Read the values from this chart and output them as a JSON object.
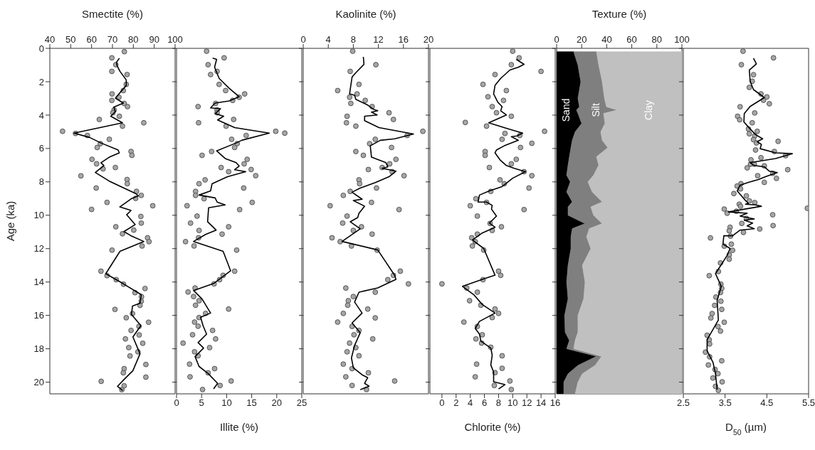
{
  "chart_data": [
    {
      "type": "scatter",
      "xlabel": "Smectite (%)",
      "ylabel": "Age (ka)",
      "xlim": [
        40,
        100
      ],
      "xticks": [
        40,
        50,
        60,
        70,
        80,
        90,
        100
      ],
      "ylim": [
        20.7,
        0
      ],
      "yticks": [
        0,
        2,
        4,
        6,
        8,
        10,
        12,
        14,
        16,
        18,
        20
      ],
      "series": [
        {
          "type": "scatter",
          "marker": "circle",
          "color": "#a6a6a6",
          "x": [
            75.7,
            69.7,
            71.6,
            69.7,
            77,
            76.6,
            75.2,
            69.8,
            73.1,
            69.7,
            75.6,
            77.2,
            70.8,
            70.2,
            73.3,
            63.7,
            85,
            74.8,
            46.1,
            52.3,
            58,
            68.5,
            64.2,
            62.7,
            78.9,
            79.3,
            60.2,
            62.4,
            71.4,
            65.5,
            54.9,
            77,
            77.1,
            62.2,
            81.5,
            83.8,
            81.1,
            67.4,
            89.3,
            60,
            83.6,
            83.8,
            71.6,
            80.2,
            74.8,
            86.8,
            87.5,
            84.2,
            69.8,
            64.5,
            67.4,
            71.8,
            75.3,
            85.6,
            80.8,
            83.9,
            83.8,
            83.2,
            71.2,
            79.6,
            76.6,
            87.3,
            82.7,
            78.9,
            82.8,
            76.2,
            84.5,
            77.8,
            82.2,
            78.4,
            86,
            75.6,
            75.2,
            86,
            64.6,
            75.6,
            74.5
          ],
          "values": [
            0.2,
            0.57,
            0.98,
            1.38,
            1.57,
            2.16,
            2.53,
            2.73,
            2.93,
            3.12,
            3.3,
            3.49,
            3.69,
            3.86,
            4.07,
            4.26,
            4.46,
            4.66,
            4.97,
            5.1,
            5.22,
            5.45,
            5.71,
            5.94,
            6.18,
            6.41,
            6.65,
            6.92,
            7.14,
            7.22,
            7.64,
            7.86,
            8.11,
            8.37,
            8.57,
            8.81,
            8.99,
            9.23,
            9.43,
            9.65,
            10.07,
            10.47,
            10.69,
            10.89,
            11.11,
            11.35,
            11.58,
            11.84,
            12.09,
            13.35,
            13.62,
            13.86,
            14.13,
            14.39,
            14.64,
            14.88,
            15.15,
            15.4,
            15.64,
            15.89,
            16.14,
            16.41,
            16.66,
            16.9,
            17.17,
            17.41,
            17.67,
            17.93,
            18.18,
            18.43,
            18.94,
            19.19,
            19.44,
            19.7,
            19.95,
            20.22,
            20.45
          ]
        },
        {
          "type": "line",
          "marker": "none",
          "color": "#000000",
          "x": [
            73.3,
            71.9,
            72.2,
            73.6,
            76.6,
            76.6,
            71.4,
            75.2,
            70.6,
            71.4,
            69.2,
            74.8,
            51.6,
            59.1,
            64.5,
            72.7,
            73.3,
            68.5,
            64.5,
            65.9,
            61.8,
            68.4,
            81.1,
            82.4,
            79,
            73.5,
            78.9,
            76.8,
            80.9,
            75.5,
            78.9,
            85,
            73.6,
            66.8,
            75,
            83.8,
            83.2,
            79.6,
            79.1,
            83.6,
            79.8,
            83.2,
            79.8,
            75.6,
            72.4,
            74.9
          ],
          "values": [
            0.59,
            0.84,
            1.04,
            1.38,
            1.89,
            2.22,
            2.98,
            3.28,
            3.52,
            3.79,
            4.07,
            4.46,
            5.08,
            5.34,
            5.67,
            6.09,
            6.26,
            6.52,
            6.85,
            7.02,
            7.44,
            7.95,
            8.7,
            8.84,
            9.01,
            9.5,
            9.71,
            9.97,
            10.56,
            10.98,
            11.23,
            11.57,
            12.16,
            13.5,
            14.09,
            14.76,
            15.27,
            15.44,
            15.94,
            16.61,
            17.29,
            18.3,
            19.31,
            19.83,
            20.25,
            20.5
          ]
        }
      ]
    },
    {
      "type": "scatter",
      "xlabel": "Illite (%)",
      "xlim": [
        0,
        25
      ],
      "xticks": [
        0,
        5,
        10,
        15,
        20,
        25
      ],
      "ylim": [
        20.7,
        0
      ],
      "yticks": [
        0,
        2,
        4,
        6,
        8,
        10,
        12,
        14,
        16,
        18,
        20
      ],
      "tick_labels": "x",
      "series": [
        {
          "type": "scatter",
          "marker": "circle",
          "color": "#a6a6a6",
          "x": [
            6,
            9.5,
            6.3,
            8.1,
            6.8,
            8.5,
            9.8,
            13.6,
            12.5,
            11.2,
            7.8,
            4.3,
            8.1,
            8.1,
            11.4,
            4.4,
            9.9,
            19.8,
            21.6,
            13.9,
            11,
            12.1,
            11.6,
            7,
            5.1,
            14.1,
            13.5,
            8.9,
            14.9,
            10.4,
            15.8,
            5.7,
            4.5,
            13.4,
            3.8,
            3.8,
            5.5,
            15.1,
            2.1,
            12.6,
            4.1,
            2.8,
            10.4,
            4.5,
            9.1,
            4.4,
            1.8,
            3.5,
            12,
            11.6,
            9.3,
            8.6,
            7.5,
            3.7,
            2.3,
            3.4,
            4.5,
            3.8,
            10.4,
            5.8,
            4.5,
            3.6,
            4.3,
            7.2,
            3.2,
            7.8,
            1.3,
            6.6,
            3.6,
            4.3,
            2.6,
            7.6,
            6.3,
            2.7,
            10.9,
            8.7,
            5.2
          ],
          "values": [
            0.17,
            0.57,
            0.98,
            1.38,
            1.57,
            2.16,
            2.53,
            2.73,
            2.93,
            3.12,
            3.3,
            3.49,
            3.69,
            3.86,
            4.26,
            4.46,
            4.66,
            4.97,
            5.08,
            5.22,
            5.45,
            5.71,
            5.94,
            6.18,
            6.41,
            6.65,
            6.92,
            7.14,
            7.26,
            7.39,
            7.63,
            7.88,
            8.11,
            8.37,
            8.57,
            8.81,
            9.01,
            9.23,
            9.43,
            9.66,
            10.05,
            10.47,
            10.69,
            10.91,
            11.13,
            11.35,
            11.58,
            11.84,
            12.09,
            13.35,
            13.6,
            13.86,
            14.11,
            14.36,
            14.6,
            14.87,
            15.12,
            15.39,
            15.62,
            15.88,
            16.13,
            16.4,
            16.65,
            16.9,
            17.16,
            17.41,
            17.66,
            17.93,
            18.18,
            18.42,
            18.92,
            19.19,
            19.44,
            19.68,
            19.93,
            20.2,
            20.44
          ]
        },
        {
          "type": "line",
          "marker": "none",
          "color": "#000000",
          "x": [
            7.2,
            8,
            7.6,
            8.5,
            10.5,
            12.5,
            10.5,
            7.7,
            6.8,
            8.8,
            7.7,
            9.4,
            8.2,
            11.6,
            18.5,
            13.1,
            11.9,
            8,
            9.7,
            11.9,
            12.5,
            11.6,
            13.8,
            10.2,
            7.1,
            6.8,
            4.5,
            7.7,
            8.1,
            9.7,
            6.4,
            6.2,
            7.9,
            5.8,
            3.4,
            9.3,
            10.8,
            7.4,
            3.4,
            5.1,
            6.8,
            4.8,
            5.3,
            6,
            4.3,
            5.4,
            3.7,
            4.5,
            6.3,
            8.2,
            7.4
          ],
          "values": [
            0.59,
            0.66,
            1.13,
            1.8,
            2.39,
            2.9,
            3.15,
            3.28,
            3.57,
            3.62,
            3.91,
            4.07,
            4.29,
            4.75,
            5.08,
            5.5,
            5.67,
            6.14,
            6.6,
            6.85,
            7.05,
            7.27,
            7.39,
            7.69,
            8.11,
            8.54,
            8.79,
            8.96,
            9.21,
            9.38,
            9.55,
            10.39,
            10.89,
            11.15,
            11.57,
            12.16,
            13.33,
            14.09,
            14.51,
            15.02,
            15.86,
            16.11,
            16.62,
            17.12,
            17.63,
            17.96,
            18.47,
            19.06,
            19.48,
            20.07,
            20.4
          ]
        }
      ]
    },
    {
      "type": "scatter",
      "xlabel": "Kaolinite (%)",
      "xlim": [
        0,
        20
      ],
      "xticks": [
        0,
        4,
        8,
        12,
        16,
        20
      ],
      "ylim": [
        20.7,
        0
      ],
      "yticks": [
        0,
        2,
        4,
        6,
        8,
        10,
        12,
        14,
        16,
        18,
        20
      ],
      "tick_labels": "x",
      "series": [
        {
          "type": "scatter",
          "marker": "circle",
          "color": "#a6a6a6",
          "x": [
            7.9,
            11.6,
            7.5,
            8.9,
            5.5,
            8.6,
            7.4,
            9.9,
            7.6,
            11,
            13.7,
            7,
            14.4,
            6.9,
            8.4,
            19.1,
            16.6,
            11.5,
            10.6,
            14.1,
            8.4,
            9.6,
            14.8,
            13.8,
            12.6,
            10.4,
            14.2,
            16.1,
            8.9,
            9,
            11.7,
            7.5,
            6.4,
            10.9,
            4.3,
            15.3,
            7,
            6.3,
            9.3,
            8,
            11,
            4.6,
            5.9,
            7.7,
            11.8,
            15.5,
            14.4,
            13.5,
            16.8,
            6.8,
            11.5,
            8,
            7.2,
            7.1,
            10.3,
            6.4,
            11.5,
            5.5,
            7.8,
            8.9,
            8.1,
            11.1,
            7.4,
            8.4,
            7,
            8.9,
            6.4,
            7.8,
            10.4,
            6.8,
            14.6,
            7.8,
            10.1
          ],
          "values": [
            0.17,
            0.98,
            1.38,
            2.16,
            2.53,
            2.73,
            2.93,
            3.12,
            3.3,
            3.49,
            3.86,
            4.07,
            4.26,
            4.46,
            4.66,
            4.97,
            5.22,
            5.45,
            5.71,
            5.94,
            6.18,
            6.41,
            6.65,
            6.92,
            7.14,
            7.26,
            7.39,
            7.63,
            7.88,
            8.11,
            8.37,
            8.57,
            8.81,
            9.23,
            9.43,
            9.66,
            10.05,
            10.47,
            10.69,
            10.91,
            11.13,
            11.35,
            11.58,
            11.84,
            12.09,
            13.35,
            13.6,
            13.86,
            14.11,
            14.36,
            14.61,
            14.87,
            15.12,
            15.39,
            15.62,
            15.88,
            16.15,
            16.4,
            16.66,
            16.9,
            17.16,
            17.41,
            17.66,
            17.93,
            18.18,
            18.42,
            18.92,
            19.19,
            19.44,
            19.68,
            19.93,
            20.2,
            20.44
          ]
        },
        {
          "type": "line",
          "marker": "none",
          "color": "#000000",
          "x": [
            9.6,
            9.7,
            8.4,
            7.8,
            7.5,
            7.4,
            8.2,
            8.4,
            10.3,
            11.2,
            11.9,
            10.9,
            11.8,
            9.8,
            9.8,
            12.1,
            17.6,
            14.6,
            12.3,
            10.7,
            10.9,
            13.2,
            13.5,
            12.6,
            14.8,
            13.7,
            11.6,
            9.1,
            7.8,
            9.4,
            8,
            9.8,
            8.9,
            8.7,
            7.5,
            9.1,
            6.2,
            11.9,
            14.6,
            14.8,
            11.9,
            8.9,
            8.2,
            9.4,
            7.8,
            9.1,
            8.2,
            7.7,
            8,
            9.4,
            10.3,
            9.8,
            10.5,
            9.1
          ],
          "values": [
            0.51,
            0.96,
            1.46,
            1.72,
            2.47,
            2.73,
            2.81,
            3.06,
            3.4,
            3.65,
            3.74,
            3.82,
            3.99,
            4.07,
            4.33,
            4.75,
            5.13,
            5.42,
            5.51,
            5.84,
            6.52,
            6.85,
            7.1,
            7.19,
            7.36,
            7.69,
            8.03,
            8.37,
            8.62,
            9.04,
            9.12,
            9.46,
            9.88,
            10.14,
            10.39,
            10.81,
            11.57,
            12.08,
            13.6,
            13.84,
            14.35,
            14.61,
            15.2,
            15.86,
            16.45,
            17.04,
            17.8,
            18.55,
            19.14,
            19.56,
            19.73,
            20.07,
            20.24,
            20.45
          ]
        }
      ]
    },
    {
      "type": "scatter",
      "xlabel": "Chlorite (%)",
      "xlim": [
        -1.7,
        16
      ],
      "xticks": [
        0,
        2,
        4,
        6,
        8,
        10,
        12,
        14,
        16
      ],
      "ylim": [
        20.7,
        0
      ],
      "yticks": [
        0,
        2,
        4,
        6,
        8,
        10,
        12,
        14,
        16,
        18,
        20
      ],
      "tick_labels": "x",
      "series": [
        {
          "type": "scatter",
          "marker": "circle",
          "color": "#a6a6a6",
          "x": [
            10,
            10.9,
            9.8,
            14,
            7.5,
            5.8,
            9.1,
            6.5,
            8.7,
            7.1,
            7.7,
            9.8,
            3.3,
            6.3,
            14.5,
            8.9,
            11,
            8.5,
            12.7,
            11.1,
            6.1,
            6.1,
            10.5,
            9.8,
            6.7,
            11.6,
            12.7,
            8.2,
            8.8,
            12.3,
            6.9,
            4.8,
            6.3,
            4,
            11.6,
            5,
            6.8,
            8.4,
            7.1,
            5,
            4.2,
            4.7,
            4.3,
            5.9,
            8,
            8.3,
            5.8,
            0,
            3.5,
            5,
            3.9,
            5.5,
            7.5,
            8,
            7.1,
            3.1,
            5,
            5.7,
            4.8,
            5.6,
            6.9,
            8.5,
            4.9,
            8.5,
            7.5,
            4.7,
            9.6,
            7.4,
            9.8
          ],
          "values": [
            0.17,
            0.57,
            0.98,
            1.38,
            1.57,
            2.16,
            2.53,
            2.9,
            3.12,
            3.49,
            3.86,
            4.07,
            4.44,
            4.66,
            4.97,
            5.1,
            5.22,
            5.45,
            5.69,
            5.94,
            6.18,
            6.41,
            6.65,
            6.92,
            7.14,
            7.39,
            7.63,
            7.88,
            8.11,
            8.37,
            8.57,
            9.01,
            9.23,
            9.43,
            9.66,
            10.05,
            10.49,
            10.69,
            10.91,
            11.13,
            11.35,
            11.58,
            11.84,
            12.09,
            13.35,
            13.6,
            13.86,
            14.11,
            14.36,
            14.61,
            15.12,
            15.39,
            15.62,
            15.88,
            16.13,
            16.4,
            16.66,
            17.16,
            17.41,
            17.66,
            17.91,
            18.42,
            18.92,
            19.17,
            19.43,
            19.68,
            19.93,
            20.2,
            20.44
          ]
        },
        {
          "type": "line",
          "marker": "none",
          "color": "#000000",
          "x": [
            10.5,
            11.6,
            10.8,
            9.6,
            8.3,
            7.5,
            7.3,
            7.9,
            8.5,
            8.3,
            9.1,
            6.6,
            9.2,
            11.4,
            10.6,
            9.8,
            10.8,
            8.8,
            7.7,
            7.5,
            8.2,
            9.1,
            10.2,
            11.8,
            10,
            8.5,
            6.7,
            5.3,
            5.1,
            6.3,
            7.1,
            7,
            7.7,
            6.7,
            7.5,
            5.7,
            4.3,
            5.9,
            7.5,
            5.7,
            2.9,
            4.5,
            5.7,
            6.9,
            7.5,
            5.3,
            4.7,
            5.3,
            5.5,
            6.9,
            7.1,
            6.9,
            7.3,
            7.3,
            8.9,
            8
          ],
          "values": [
            0.66,
            0.96,
            1.13,
            1.3,
            1.8,
            2.22,
            2.73,
            3.23,
            3.49,
            3.74,
            3.99,
            4.46,
            4.8,
            5.08,
            5.25,
            5.29,
            5.51,
            5.84,
            6.09,
            6.26,
            6.68,
            7.02,
            7.19,
            7.39,
            7.78,
            8.28,
            8.54,
            8.79,
            9.21,
            9.21,
            9.41,
            9.63,
            10.05,
            10.47,
            10.72,
            11.06,
            11.48,
            11.99,
            13.59,
            13.84,
            14.26,
            14.76,
            15.35,
            15.69,
            15.86,
            16.36,
            16.78,
            17.12,
            17.54,
            17.96,
            18.38,
            18.97,
            19.39,
            19.98,
            20.15,
            20.41
          ]
        }
      ]
    },
    {
      "type": "area",
      "stacked": true,
      "orientation": "horizontal",
      "xlabel": "Texture (%)",
      "xlim": [
        0,
        100
      ],
      "xticks": [
        0,
        20,
        40,
        60,
        80,
        100
      ],
      "ylim": [
        20.7,
        0
      ],
      "yticks": [
        0,
        2,
        4,
        6,
        8,
        10,
        12,
        14,
        16,
        18,
        20
      ],
      "tick_labels": "x",
      "x": [
        0.2,
        1,
        2,
        3,
        3.5,
        3.7,
        3.9,
        4.5,
        5,
        5.5,
        5.95,
        6.5,
        7,
        7.6,
        8,
        8.6,
        9.2,
        9.5,
        10,
        10.5,
        10.8,
        11.3,
        12,
        13,
        14,
        15,
        16,
        17,
        17.5,
        18,
        18.45,
        19,
        19.5,
        20,
        20.7
      ],
      "series": [
        {
          "name": "Sand",
          "color": "#000000",
          "values": [
            13.6,
            17,
            19.3,
            17,
            18.2,
            15.9,
            17,
            20,
            14.8,
            12.5,
            11.4,
            10.2,
            9.1,
            8,
            10.9,
            8,
            12.5,
            9.1,
            9.1,
            22.7,
            12.5,
            11.4,
            11.4,
            9.1,
            8,
            9.1,
            6.4,
            6.8,
            10.2,
            8,
            31.8,
            17,
            9.1,
            5.7,
            5.7
          ]
        },
        {
          "name": "Silt",
          "color": "#7f7f7f",
          "values": [
            18.2,
            16.6,
            17.1,
            21.2,
            21.6,
            32.5,
            20.5,
            18.6,
            20.4,
            23.9,
            29.5,
            21.6,
            24.5,
            21.5,
            14.1,
            20.4,
            23.9,
            18.2,
            20.4,
            13.7,
            13.6,
            12.5,
            15.9,
            11.4,
            14.7,
            12.5,
            10.6,
            10.2,
            4.6,
            5.6,
            4.1,
            13.7,
            11.4,
            11.3,
            9.1
          ]
        },
        {
          "name": "Clay",
          "color": "#c0c0c0",
          "values": [
            68.2,
            66.4,
            63.6,
            61.8,
            60.2,
            51.6,
            62.5,
            61.4,
            64.8,
            63.6,
            59.1,
            68.2,
            66.4,
            70.5,
            75,
            71.6,
            63.6,
            72.7,
            70.5,
            63.6,
            73.9,
            76.1,
            72.7,
            79.5,
            77.3,
            78.4,
            83,
            83,
            85.2,
            86.4,
            64.1,
            69.3,
            79.5,
            83,
            85.2
          ]
        }
      ]
    },
    {
      "type": "scatter",
      "xlabel": "D$_{50}$ (µm)",
      "xlim": [
        2.5,
        5.5
      ],
      "xticks": [
        2.5,
        3.5,
        4.5,
        5.5
      ],
      "ylim": [
        20.7,
        0
      ],
      "yticks": [
        0,
        2,
        4,
        6,
        8,
        10,
        12,
        14,
        16,
        18,
        20
      ],
      "tick_labels": "x",
      "series": [
        {
          "type": "scatter",
          "marker": "circle",
          "color": "#a6a6a6",
          "x": [
            3.93,
            4.66,
            3.89,
            4.18,
            4.15,
            4.08,
            4.36,
            4.5,
            4.42,
            4.56,
            3.86,
            4.21,
            3.8,
            3.85,
            4.15,
            4.06,
            4.27,
            4.08,
            4.21,
            4.18,
            4.77,
            4.25,
            4.23,
            4.68,
            4.95,
            4.36,
            4.12,
            4.11,
            4.2,
            4.44,
            4.03,
            5,
            4.64,
            4.28,
            4.73,
            4.44,
            3.88,
            3.79,
            3.87,
            3.71,
            4.01,
            4.08,
            4.21,
            3.84,
            3.87,
            5.47,
            3.48,
            3.77,
            3.55,
            4.64,
            4.01,
            3.9,
            4.65,
            3.62,
            4.33,
            3.6,
            3.94,
            3.63,
            3.15,
            3.65,
            3.48,
            3.68,
            3.6,
            3.6,
            3.39,
            3.34,
            3.12,
            3.4,
            3.42,
            3.39,
            3.28,
            3.4,
            3.25,
            3.42,
            3.19,
            3.16,
            3.48,
            3.33,
            3.39,
            3.07,
            3.12,
            3.13,
            3.03,
            3.13,
            3.42,
            3.1,
            3.26,
            3.33,
            3.21,
            3.43,
            3.27,
            3.34
          ],
          "values": [
            0.17,
            0.57,
            0.98,
            1.58,
            1.97,
            2.34,
            2.73,
            2.91,
            3.11,
            3.32,
            3.5,
            3.87,
            4.07,
            4.28,
            4.46,
            4.83,
            4.97,
            5.12,
            5.25,
            5.47,
            5.57,
            5.67,
            6.09,
            6.18,
            6.43,
            6.55,
            6.68,
            6.94,
            6.94,
            7.04,
            7.16,
            7.27,
            7.49,
            7.63,
            7.79,
            8.03,
            8.11,
            8.25,
            8.42,
            8.7,
            8.84,
            9.14,
            9.24,
            9.34,
            9.46,
            9.58,
            9.63,
            9.76,
            9.88,
            9.97,
            10.19,
            10.49,
            10.62,
            10.72,
            10.82,
            10.93,
            11.03,
            11.25,
            11.36,
            11.73,
            11.85,
            12.1,
            12.37,
            12.63,
            12.86,
            13.37,
            13.62,
            14.13,
            14.38,
            14.63,
            14.9,
            15.15,
            15.4,
            15.64,
            15.89,
            16.15,
            16.41,
            16.67,
            16.94,
            17.19,
            17.46,
            17.71,
            18.2,
            18.48,
            18.72,
            18.97,
            19.24,
            19.49,
            19.75,
            19.98,
            20.25,
            20.49
          ]
        },
        {
          "type": "line",
          "marker": "none",
          "color": "#000000",
          "x": [
            4.18,
            4.25,
            4.08,
            4.1,
            4.18,
            4.44,
            4.1,
            3.96,
            3.95,
            4.1,
            4.23,
            4.4,
            4.27,
            4.37,
            4.34,
            4.71,
            5.11,
            4.71,
            4.1,
            4.2,
            4.44,
            4.56,
            4.75,
            4.47,
            4.3,
            4.06,
            3.86,
            3.79,
            3.99,
            4.06,
            3.99,
            4.23,
            4.37,
            3.58,
            4.03,
            3.86,
            4.2,
            3.96,
            4.16,
            4.03,
            4.2,
            3.86,
            3.68,
            3.47,
            3.45,
            3.62,
            3.55,
            3.27,
            3.41,
            3.31,
            3.34,
            3.07,
            3.07,
            3.21,
            3.27,
            3.31
          ],
          "values": [
            0.59,
            0.93,
            1.3,
            1.97,
            2.47,
            2.95,
            3.48,
            3.91,
            4.41,
            4.83,
            5.17,
            5.42,
            5.59,
            5.76,
            6.01,
            6.26,
            6.31,
            6.6,
            6.85,
            7.02,
            7.1,
            7.36,
            7.44,
            7.69,
            7.86,
            8.03,
            8.2,
            8.54,
            9.12,
            9.29,
            9.34,
            9.38,
            9.46,
            9.8,
            9.88,
            10.05,
            10.22,
            10.3,
            10.47,
            10.64,
            10.81,
            10.89,
            11.23,
            11.23,
            11.73,
            11.99,
            12.41,
            13.5,
            14.26,
            15.1,
            16.28,
            17.46,
            18.13,
            18.81,
            19.48,
            20.45
          ]
        }
      ]
    }
  ]
}
